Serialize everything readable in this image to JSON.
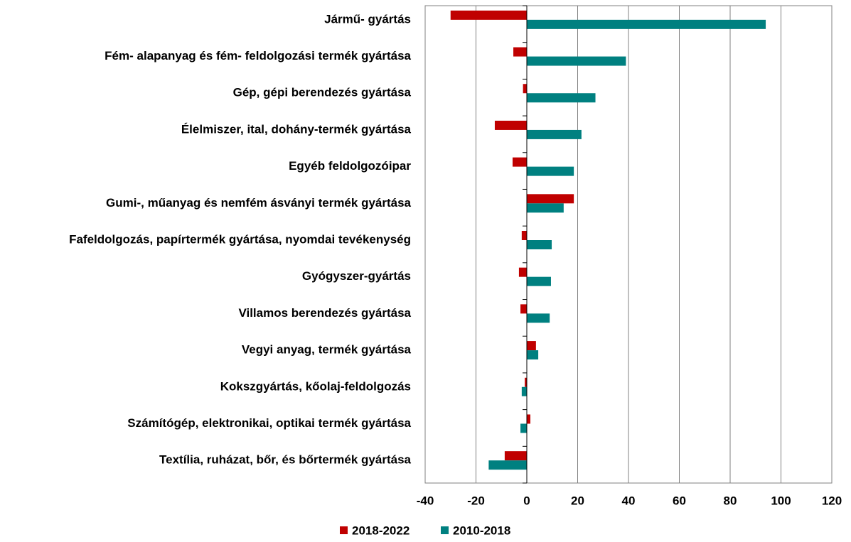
{
  "chart_data": {
    "type": "hbar",
    "categories": [
      "Jármű- gyártás",
      "Fém- alapanyag és fém- feldolgozási termék gyártása",
      "Gép, gépi berendezés gyártása",
      "Élelmiszer, ital, dohány-termék gyártása",
      "Egyéb feldolgozóipar",
      "Gumi-, műanyag és nemfém ásványi termék gyártása",
      "Fafeldolgozás, papírtermék gyártása, nyomdai tevékenység",
      "Gyógyszer-gyártás",
      "Villamos berendezés gyártása",
      "Vegyi anyag, termék gyártása",
      "Kokszgyártás, kőolaj-feldolgozás",
      "Számítógép, elektronikai, optikai termék gyártása",
      "Textília, ruházat, bőr, és bőrtermék gyártása"
    ],
    "series": [
      {
        "name": "2018-2022",
        "color": "#c00000",
        "values": [
          -30,
          -5.3,
          -1.5,
          -12.6,
          -5.6,
          18.5,
          -2,
          -3.1,
          -2.5,
          3.6,
          -0.8,
          1.4,
          -8.7
        ]
      },
      {
        "name": "2010-2018",
        "color": "#008080",
        "values": [
          94,
          39,
          27,
          21.5,
          18.5,
          14.5,
          9.8,
          9.5,
          9,
          4.5,
          -2,
          -2.5,
          -15
        ]
      }
    ],
    "xlim": [
      -40,
      120
    ],
    "xticks": [
      -40,
      -20,
      0,
      20,
      40,
      60,
      80,
      100,
      120
    ],
    "grid": true,
    "legend": "bottom"
  }
}
